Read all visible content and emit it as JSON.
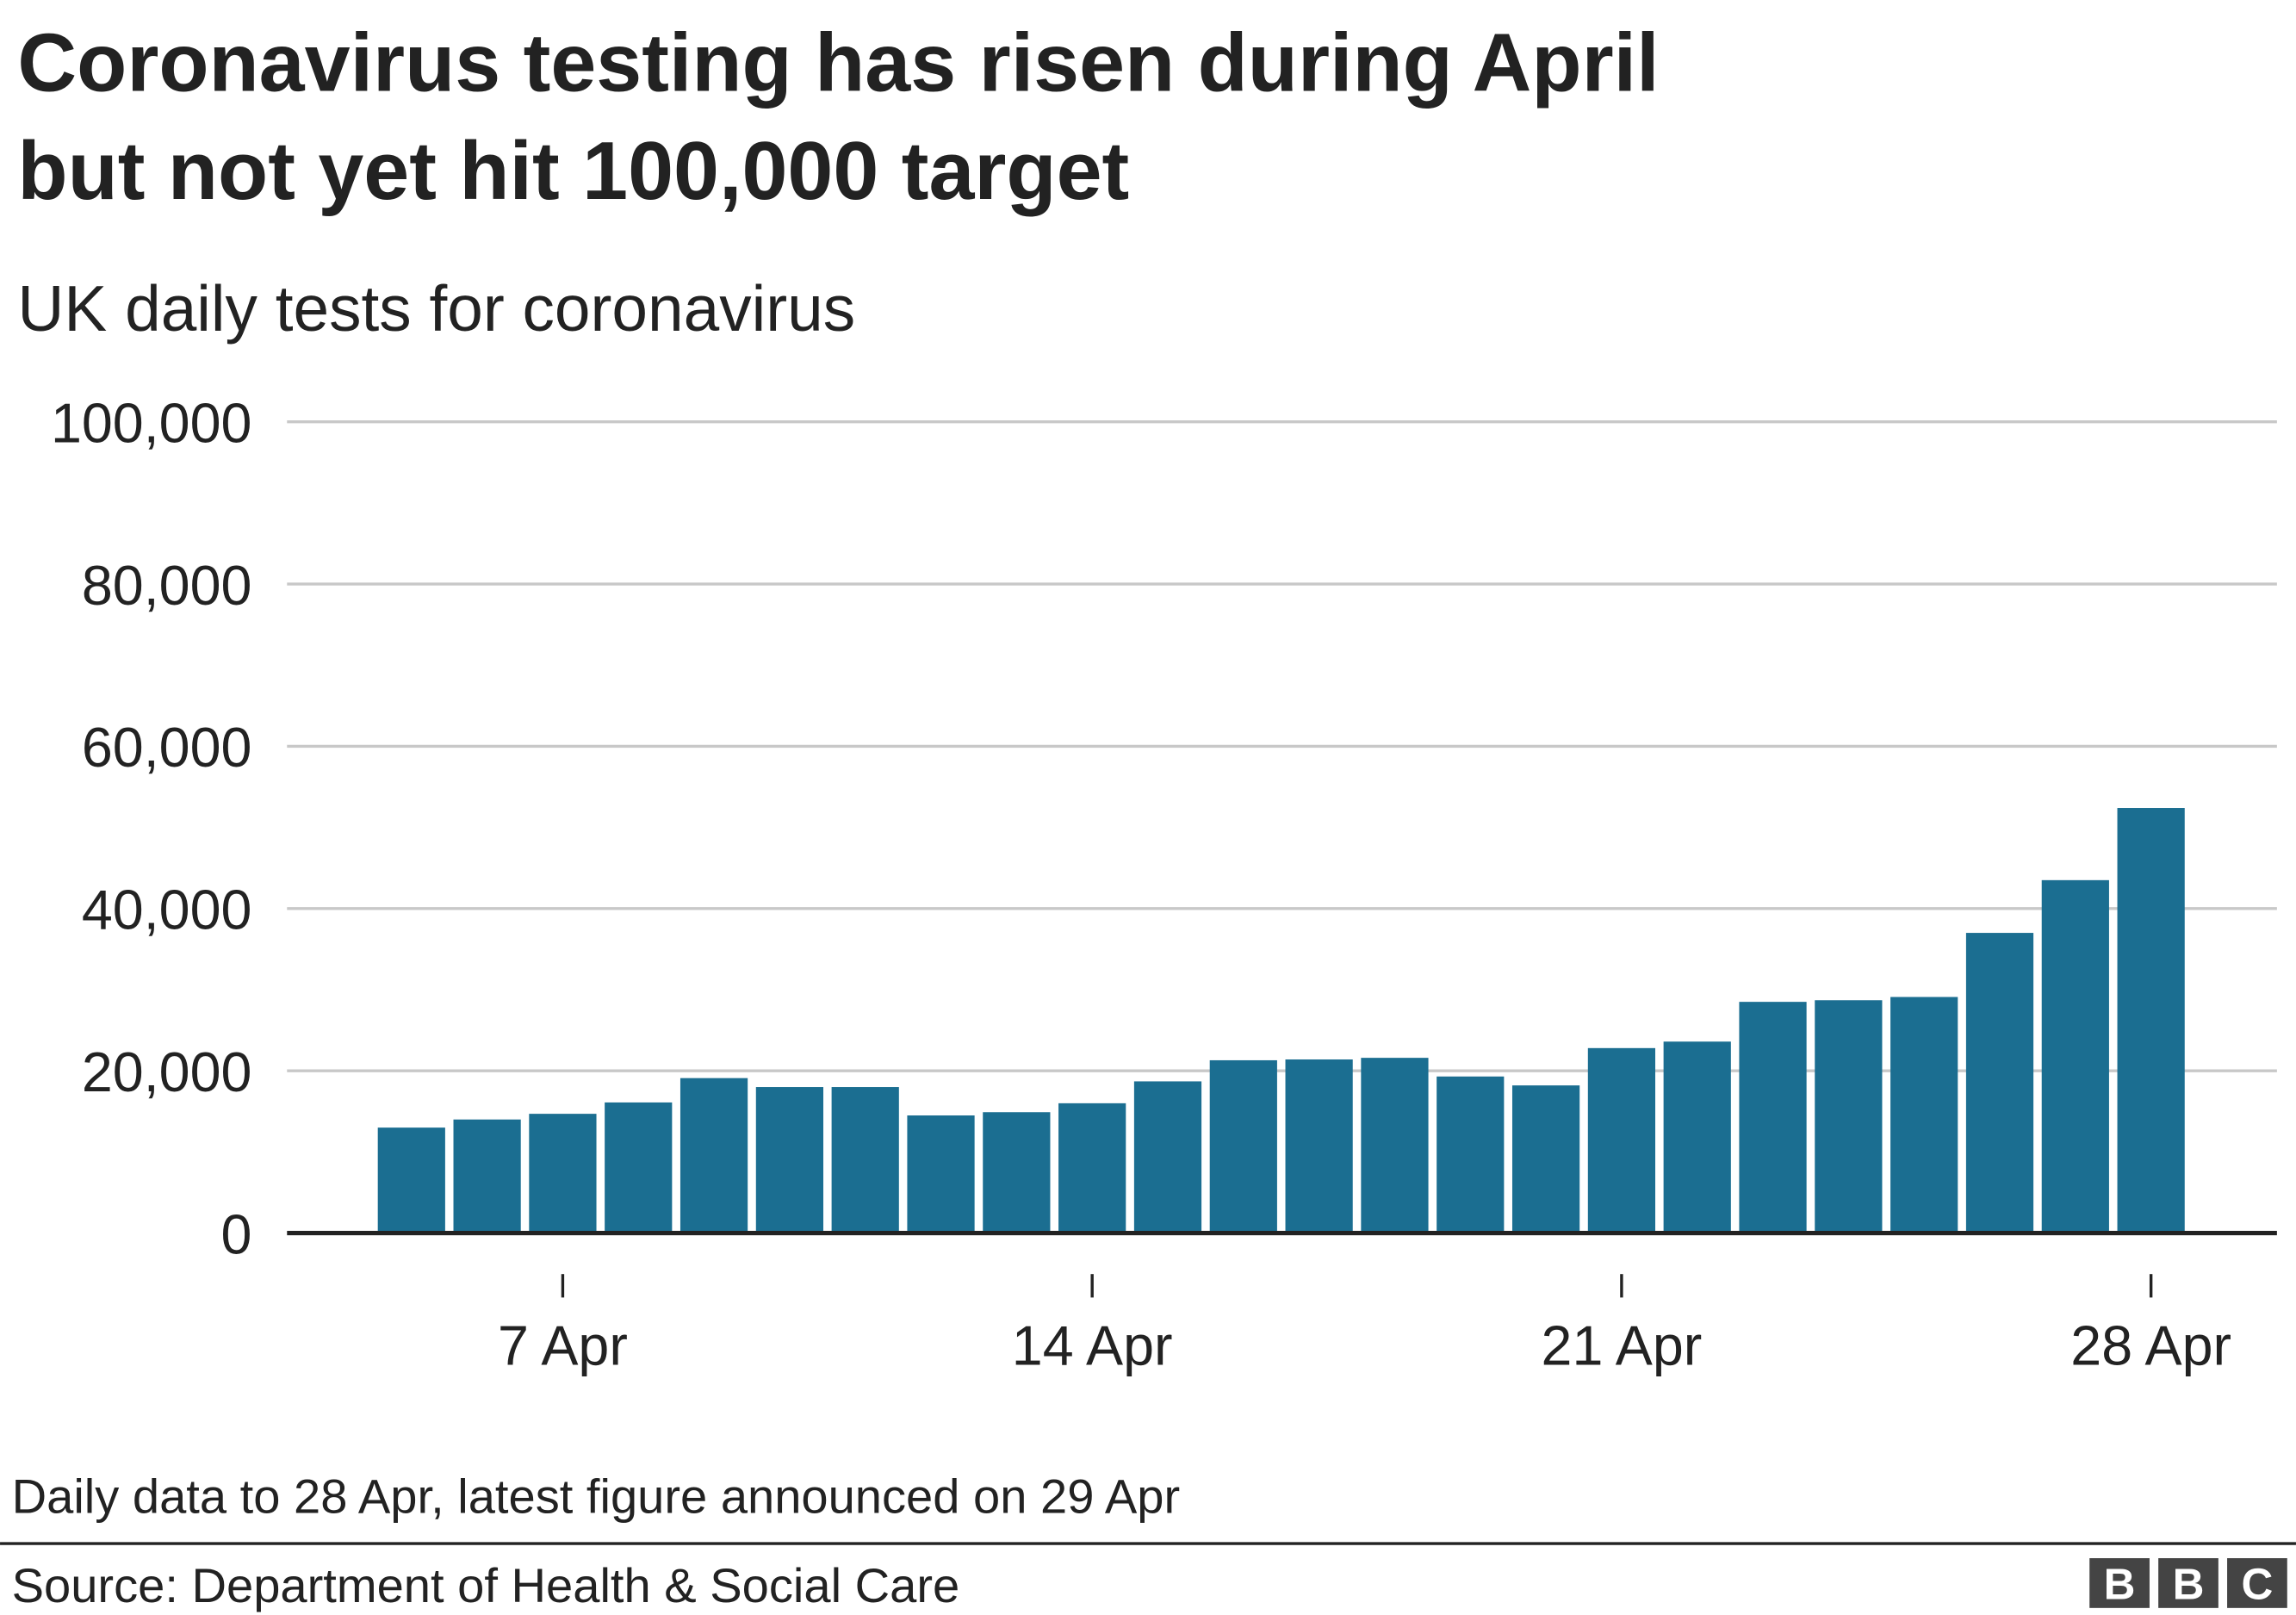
{
  "chart_data": {
    "type": "bar",
    "title": [
      "Coronavirus testing has risen during April",
      "but not yet hit 100,000 target"
    ],
    "subtitle": "UK daily tests for coronavirus",
    "categories": [
      null,
      null,
      "7 Apr",
      null,
      null,
      null,
      null,
      null,
      null,
      "14 Apr",
      null,
      null,
      null,
      null,
      null,
      null,
      "21 Apr",
      null,
      null,
      null,
      null,
      null,
      null,
      "28 Apr"
    ],
    "values": [
      13000,
      14000,
      14700,
      16100,
      19100,
      18000,
      18000,
      14500,
      14900,
      16000,
      18700,
      21300,
      21400,
      21600,
      19300,
      18200,
      22800,
      23600,
      28500,
      28700,
      29100,
      37000,
      43500,
      52400
    ],
    "color": "#1b6e91",
    "ylim": [
      0,
      100000
    ],
    "yticks": [
      0,
      {
        "value": 20000,
        "label": "20,000"
      },
      {
        "value": 40000,
        "label": "40,000"
      },
      {
        "value": 60000,
        "label": "60,000"
      },
      {
        "value": 80000,
        "label": "80,000"
      },
      {
        "value": 100000,
        "label": "100,000"
      }
    ],
    "grid": true,
    "note": "Daily data to 28 Apr, latest figure announced on 29 Apr",
    "source": "Source: Department of Health & Social Care",
    "logo": [
      "B",
      "B",
      "C"
    ]
  }
}
